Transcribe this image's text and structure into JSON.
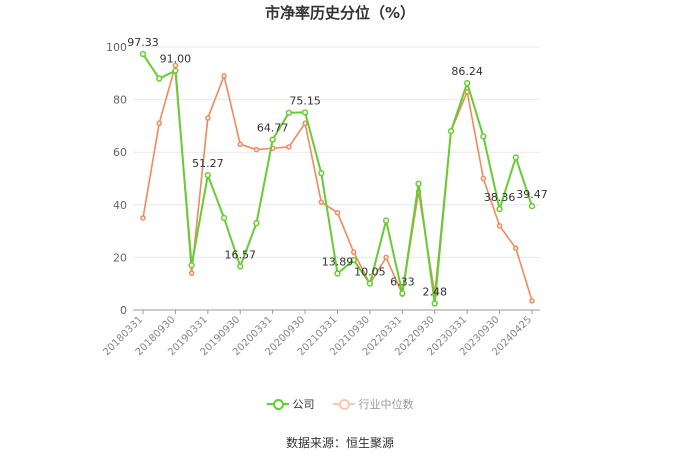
{
  "title": "市净率历史分位（%）",
  "source": "数据来源：恒生聚源",
  "colors": {
    "company": "#66cc33",
    "industry": "#f08a5d",
    "grid": "#e8e8e8",
    "axis": "#999999",
    "text": "#666666"
  },
  "legend": [
    {
      "name": "公司",
      "color": "#66cc33"
    },
    {
      "name": "行业中位数",
      "color": "#f08a5d"
    }
  ],
  "chart_data": {
    "type": "line",
    "title": "市净率历史分位（%）",
    "ylim": [
      0,
      100
    ],
    "y_ticks": [
      0,
      20,
      40,
      60,
      80,
      100
    ],
    "grid": true,
    "legend_position": "bottom",
    "tick_labels": [
      "20180331",
      "20180930",
      "20190331",
      "20190930",
      "20200331",
      "20200930",
      "20210331",
      "20210930",
      "20220331",
      "20220930",
      "20230331",
      "20230930",
      "20240425"
    ],
    "series": [
      {
        "name": "公司",
        "color": "#66cc33",
        "values": [
          97.33,
          88,
          91.0,
          17,
          51.27,
          35,
          16.57,
          33,
          64.77,
          75,
          75.15,
          52,
          13.89,
          19,
          10.05,
          34,
          6.33,
          48,
          2.48,
          68,
          86.24,
          66,
          38.36,
          58,
          39.47
        ],
        "labels": {
          "0": "97.33",
          "2": "91.00",
          "4": "51.27",
          "6": "16.57",
          "8": "64.77",
          "10": "75.15",
          "12": "13.89",
          "14": "10.05",
          "16": "6.33",
          "18": "2.48",
          "20": "86.24",
          "22": "38.36",
          "24": "39.47"
        }
      },
      {
        "name": "行业中位数",
        "color": "#f08a5d",
        "values": [
          35,
          71,
          93,
          14,
          73,
          89,
          63,
          61,
          61.5,
          62,
          71,
          41,
          37,
          22,
          10,
          20,
          6,
          45,
          6,
          68,
          83,
          50,
          32,
          23.5,
          3.5
        ]
      }
    ]
  }
}
